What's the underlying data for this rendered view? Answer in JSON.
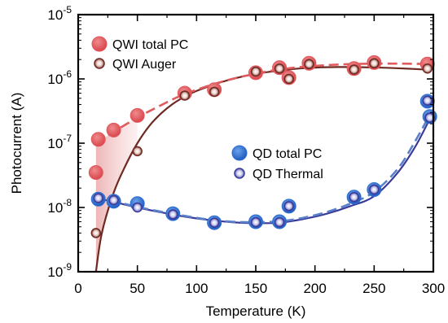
{
  "chart_data": {
    "type": "scatter",
    "xlabel": "Temperature (K)",
    "ylabel": "Photocurrent (A)",
    "xlim": [
      0,
      300
    ],
    "ylim_log10": [
      -9,
      -5
    ],
    "y_scale": "log",
    "grid": false,
    "legend_placement": "top-left and center",
    "x_ticks": [
      "0",
      "50",
      "100",
      "150",
      "200",
      "250",
      "300"
    ],
    "y_ticks": [
      {
        "base": "10",
        "exp": "-9",
        "log10": -9
      },
      {
        "base": "10",
        "exp": "-8",
        "log10": -8
      },
      {
        "base": "10",
        "exp": "-7",
        "log10": -7
      },
      {
        "base": "10",
        "exp": "-6",
        "log10": -6
      },
      {
        "base": "10",
        "exp": "-5",
        "log10": -5
      }
    ],
    "colors": {
      "qwi_total": "#e05a5e",
      "qwi_auger": "#6e2a22",
      "qd_total": "#2f6fd0",
      "qd_thermal": "#3a3a9a",
      "qwi_shade": "#e8a0a0"
    },
    "series": [
      {
        "name": "QWI total PC",
        "marker": "filled",
        "x": [
          15,
          17,
          30,
          50,
          90,
          115,
          150,
          170,
          178,
          195,
          233,
          250,
          295
        ],
        "y": [
          3.5e-08,
          1.15e-07,
          1.6e-07,
          2.7e-07,
          6e-07,
          6.8e-07,
          1.25e-06,
          1.5e-06,
          1.05e-06,
          1.75e-06,
          1.45e-06,
          1.8e-06,
          1.7e-06
        ]
      },
      {
        "name": "QWI Auger",
        "marker": "ring",
        "x": [
          15,
          50,
          90,
          115,
          150,
          170,
          178,
          195,
          233,
          250,
          295
        ],
        "y": [
          4e-09,
          7.5e-08,
          5.5e-07,
          6.3e-07,
          1.3e-06,
          1.45e-06,
          1e-06,
          1.7e-06,
          1.4e-06,
          1.75e-06,
          1.45e-06
        ]
      },
      {
        "name": "QD total PC",
        "marker": "filled",
        "x": [
          17,
          30,
          50,
          80,
          115,
          150,
          170,
          178,
          233,
          250,
          295,
          297
        ],
        "y": [
          1.35e-08,
          1.25e-08,
          1.15e-08,
          8e-09,
          5.8e-09,
          6e-09,
          6e-09,
          1.05e-08,
          1.45e-08,
          1.9e-08,
          4.5e-07,
          2.6e-07
        ]
      },
      {
        "name": "QD Thermal",
        "marker": "ring",
        "x": [
          17,
          30,
          50,
          80,
          115,
          150,
          170,
          178,
          233,
          250,
          295,
          297
        ],
        "y": [
          1.4e-08,
          1.3e-08,
          1e-08,
          7.8e-09,
          5.8e-09,
          5.9e-09,
          5.9e-09,
          1.05e-08,
          1.45e-08,
          1.9e-08,
          4.6e-07,
          2.5e-07
        ]
      }
    ],
    "fits": [
      {
        "series": "QWI Auger",
        "style": "solid",
        "x": [
          15,
          20,
          30,
          40,
          50,
          60,
          70,
          80,
          90,
          100,
          120,
          140,
          160,
          180,
          200,
          220,
          240,
          260,
          280,
          298
        ],
        "y": [
          1e-09,
          4e-09,
          1.7e-08,
          4.5e-08,
          1e-07,
          1.85e-07,
          2.9e-07,
          4.1e-07,
          5.3e-07,
          6.5e-07,
          8.8e-07,
          1.1e-06,
          1.28e-06,
          1.42e-06,
          1.5e-06,
          1.53e-06,
          1.52e-06,
          1.49e-06,
          1.44e-06,
          1.38e-06
        ]
      },
      {
        "series": "QWI total PC",
        "style": "dashed",
        "x": [
          15,
          30,
          50,
          70,
          90,
          120,
          150,
          180,
          210,
          240,
          270,
          298
        ],
        "y": [
          1e-07,
          1.5e-07,
          2.5e-07,
          3.9e-07,
          5.8e-07,
          8.9e-07,
          1.21e-06,
          1.48e-06,
          1.64e-06,
          1.72e-06,
          1.73e-06,
          1.7e-06
        ]
      },
      {
        "series": "QD Thermal",
        "style": "solid",
        "x": [
          15,
          30,
          50,
          70,
          90,
          110,
          130,
          150,
          170,
          190,
          210,
          230,
          250,
          270,
          285,
          298
        ],
        "y": [
          1.4e-08,
          1.22e-08,
          1e-08,
          8.4e-09,
          7.2e-09,
          6.4e-09,
          5.9e-09,
          5.7e-09,
          5.8e-09,
          6.6e-09,
          8e-09,
          1.05e-08,
          1.5e-08,
          3.5e-08,
          9e-08,
          2.6e-07
        ]
      },
      {
        "series": "QD total PC",
        "style": "dashed",
        "x": [
          15,
          30,
          50,
          70,
          90,
          110,
          130,
          150,
          170,
          190,
          210,
          230,
          250,
          270,
          285,
          298
        ],
        "y": [
          1.45e-08,
          1.25e-08,
          1.02e-08,
          8.6e-09,
          7.4e-09,
          6.5e-09,
          6e-09,
          5.9e-09,
          6.1e-09,
          6.9e-09,
          8.5e-09,
          1.15e-08,
          1.75e-08,
          4e-08,
          1.1e-07,
          3e-07
        ]
      }
    ],
    "shaded_band": {
      "between": [
        "QWI total PC",
        "QWI Auger"
      ],
      "x": [
        15,
        20,
        30,
        40,
        50
      ],
      "upper": [
        1e-07,
        1.15e-07,
        1.5e-07,
        2e-07,
        2.5e-07
      ],
      "lower": [
        1e-09,
        4e-09,
        1.7e-08,
        4.5e-08,
        1e-07
      ]
    }
  }
}
